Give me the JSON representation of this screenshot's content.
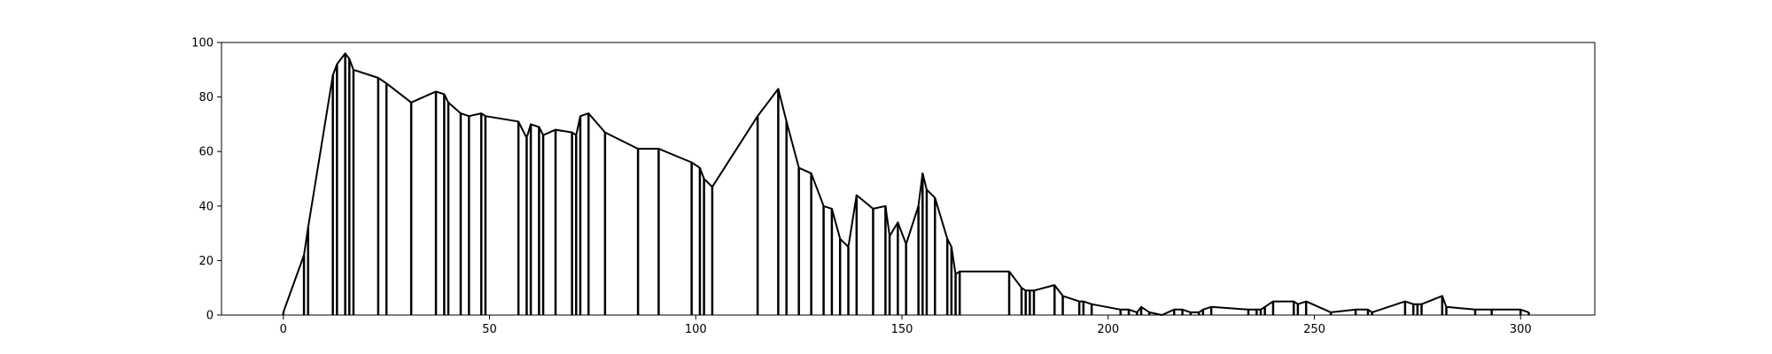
{
  "chart_data": {
    "type": "line",
    "title": "",
    "xlabel": "",
    "ylabel": "",
    "xlim": [
      -15,
      318
    ],
    "ylim": [
      0,
      100
    ],
    "x_ticks": [
      0,
      50,
      100,
      150,
      200,
      250,
      300
    ],
    "y_ticks": [
      0,
      20,
      40,
      60,
      80,
      100
    ],
    "grid": false,
    "legend": "none",
    "stem_color": "#000000",
    "series": [
      {
        "x": [
          0,
          5,
          6,
          12,
          13,
          15,
          16,
          17,
          23,
          25,
          31,
          37,
          39,
          40,
          43,
          45,
          48,
          49,
          57,
          59,
          60,
          62,
          63,
          66,
          70,
          71,
          72,
          74,
          78,
          86,
          91,
          99,
          101,
          102,
          104,
          115,
          120,
          122,
          125,
          128,
          131,
          133,
          135,
          137,
          139,
          143,
          146,
          147,
          149,
          151,
          154,
          155,
          156,
          158,
          161,
          162,
          163,
          164,
          176,
          179,
          180,
          181,
          182,
          187,
          189,
          193,
          194,
          196,
          203,
          205,
          207,
          208,
          210,
          213,
          216,
          218,
          220,
          222,
          223,
          225,
          234,
          236,
          237,
          238,
          240,
          245,
          246,
          248,
          254,
          260,
          263,
          264,
          272,
          274,
          275,
          276,
          281,
          282,
          289,
          293,
          300,
          302
        ],
        "y": [
          1,
          22,
          32,
          88,
          92,
          96,
          94,
          90,
          87,
          85,
          78,
          82,
          81,
          78,
          74,
          73,
          74,
          73,
          71,
          65,
          70,
          69,
          66,
          68,
          67,
          66,
          73,
          74,
          67,
          61,
          61,
          56,
          54,
          50,
          47,
          73,
          83,
          71,
          54,
          52,
          40,
          39,
          28,
          25,
          44,
          39,
          40,
          29,
          34,
          26,
          40,
          52,
          46,
          43,
          28,
          25,
          15,
          16,
          16,
          10,
          9,
          9,
          9,
          11,
          7,
          5,
          5,
          4,
          2,
          2,
          1,
          3,
          1,
          0,
          2,
          2,
          1,
          1,
          2,
          3,
          2,
          2,
          2,
          3,
          5,
          5,
          4,
          5,
          1,
          2,
          2,
          1,
          5,
          4,
          4,
          4,
          7,
          3,
          2,
          2,
          2,
          1
        ]
      }
    ]
  }
}
